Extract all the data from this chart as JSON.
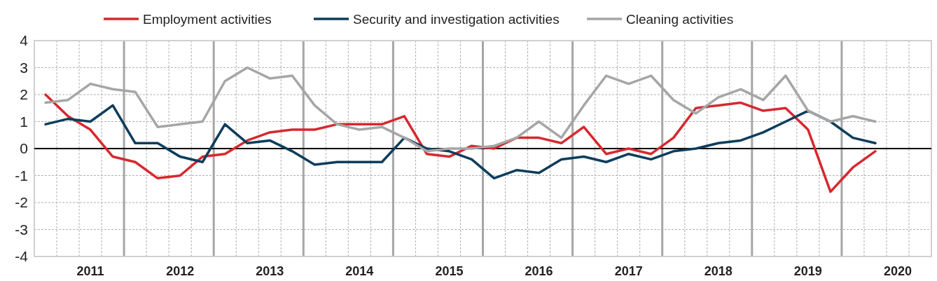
{
  "chart_data": {
    "type": "line",
    "categories": [
      null,
      null,
      "2011",
      null,
      null,
      null,
      "2012",
      null,
      null,
      null,
      "2013",
      null,
      null,
      null,
      "2014",
      null,
      null,
      null,
      "2015",
      null,
      null,
      null,
      "2016",
      null,
      null,
      null,
      "2017",
      null,
      null,
      null,
      "2018",
      null,
      null,
      null,
      "2019",
      null,
      null,
      null,
      "2020",
      null
    ],
    "series": [
      {
        "name": "Employment activities",
        "color": "#d7282f",
        "values": [
          2.0,
          1.2,
          0.7,
          -0.3,
          -0.5,
          -1.1,
          -1.0,
          -0.3,
          -0.2,
          0.3,
          0.6,
          0.7,
          0.7,
          0.9,
          0.9,
          0.9,
          1.2,
          -0.2,
          -0.3,
          0.1,
          0.0,
          0.4,
          0.4,
          0.2,
          0.8,
          -0.2,
          0.0,
          -0.2,
          0.4,
          1.5,
          1.6,
          1.7,
          1.4,
          1.5,
          0.7,
          -1.6,
          -0.7,
          -0.1,
          null,
          null
        ]
      },
      {
        "name": "Security and investigation activities",
        "color": "#0d3d5c",
        "values": [
          0.9,
          1.1,
          1.0,
          1.6,
          0.2,
          0.2,
          -0.3,
          -0.5,
          0.9,
          0.2,
          0.3,
          -0.1,
          -0.6,
          -0.5,
          -0.5,
          -0.5,
          0.4,
          0.0,
          -0.1,
          -0.4,
          -1.1,
          -0.8,
          -0.9,
          -0.4,
          -0.3,
          -0.5,
          -0.2,
          -0.4,
          -0.1,
          0.0,
          0.2,
          0.3,
          0.6,
          1.0,
          1.4,
          1.0,
          0.4,
          0.2,
          null,
          null
        ]
      },
      {
        "name": "Cleaning activities",
        "color": "#a6a6a6",
        "values": [
          1.7,
          1.8,
          2.4,
          2.2,
          2.1,
          0.8,
          0.9,
          1.0,
          2.5,
          3.0,
          2.6,
          2.7,
          1.6,
          0.9,
          0.7,
          0.8,
          0.4,
          -0.1,
          0.0,
          0.0,
          0.1,
          0.4,
          1.0,
          0.4,
          1.6,
          2.7,
          2.4,
          2.7,
          1.8,
          1.3,
          1.9,
          2.2,
          1.8,
          2.7,
          1.4,
          1.0,
          1.2,
          1.0,
          null,
          null
        ]
      }
    ],
    "ylim": [
      -4,
      4
    ],
    "yticks": [
      -4,
      -3,
      -2,
      -1,
      0,
      1,
      2,
      3,
      4
    ],
    "ref_lines": [
      {
        "axis": "y",
        "value": 0,
        "color": "#000000"
      }
    ],
    "grid": true,
    "legend": "top",
    "marker": "none",
    "line_style": "solid"
  }
}
